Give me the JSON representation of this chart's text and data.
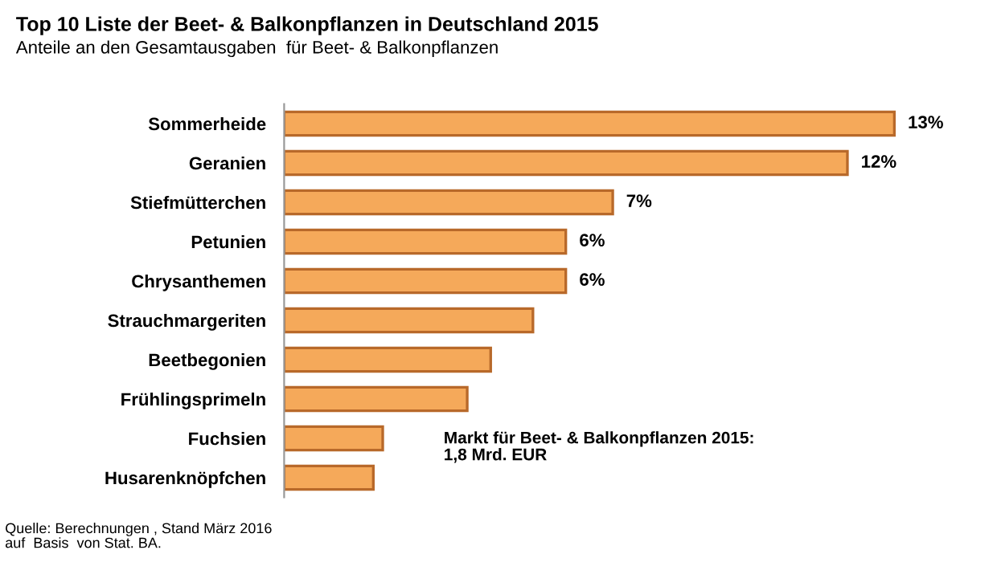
{
  "chart_data": {
    "type": "bar",
    "orientation": "horizontal",
    "title": "Top 10 Liste der Beet- & Balkonpflanzen in Deutschland 2015",
    "subtitle": "Anteile an den Gesamtausgaben  für Beet- & Balkonpflanzen",
    "categories": [
      "Sommerheide",
      "Geranien",
      "Stiefmütterchen",
      "Petunien",
      "Chrysanthemen",
      "Strauchmargeriten",
      "Beetbegonien",
      "Frühlingsprimeln",
      "Fuchsien",
      "Husarenknöpfchen"
    ],
    "values": [
      13,
      12,
      7,
      6,
      6,
      5.3,
      4.4,
      3.9,
      2.1,
      1.9
    ],
    "value_labels": [
      "13%",
      "12%",
      "7%",
      "6%",
      "6%",
      null,
      null,
      null,
      null,
      null
    ],
    "color": "#f5a95a",
    "grid": false,
    "legend": false,
    "annotations": [
      "Markt für Beet- & Balkonpflanzen 2015:\n1,8 Mrd. EUR",
      "Quelle: Berechnungen , Stand März 2016\nauf  Basis  von Stat. BA."
    ]
  }
}
